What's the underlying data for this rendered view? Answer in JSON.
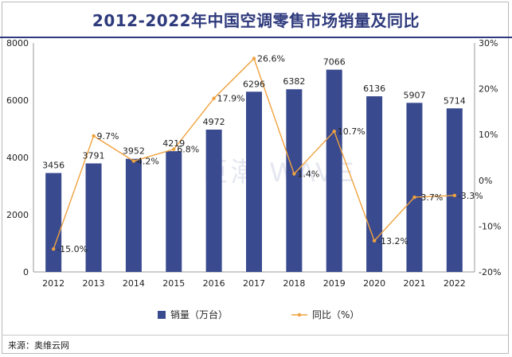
{
  "title": "2012-2022年中国空调零售市场销量及同比",
  "watermark": "巨潮 WAVE",
  "source": "来源：奥维云网",
  "chart_data": {
    "type": "bar+line",
    "categories": [
      "2012",
      "2013",
      "2014",
      "2015",
      "2016",
      "2017",
      "2018",
      "2019",
      "2020",
      "2021",
      "2022"
    ],
    "series": [
      {
        "name": "销量（万台）",
        "type": "bar",
        "axis": "left",
        "color": "#3a4a8f",
        "values": [
          3456,
          3791,
          3952,
          4219,
          4972,
          6296,
          6382,
          7066,
          6136,
          5907,
          5714
        ],
        "labels": [
          "3456",
          "3791",
          "3952",
          "4219",
          "4972",
          "6296",
          "6382",
          "7066",
          "6136",
          "5907",
          "5714"
        ]
      },
      {
        "name": "同比（%）",
        "type": "line",
        "axis": "right",
        "color": "#f0a23e",
        "values": [
          -15.0,
          9.7,
          4.2,
          6.8,
          17.9,
          26.6,
          1.4,
          10.7,
          -13.2,
          -3.7,
          -3.3
        ],
        "labels": [
          "-15.0%",
          "9.7%",
          "4.2%",
          "6.8%",
          "17.9%",
          "26.6%",
          "1.4%",
          "10.7%",
          "-13.2%",
          "-3.7%",
          "-3.3%"
        ]
      }
    ],
    "y_left": {
      "min": 0,
      "max": 8000,
      "ticks": [
        "0",
        "2000",
        "4000",
        "6000",
        "8000"
      ]
    },
    "y_right": {
      "min": -20,
      "max": 30,
      "ticks": [
        "-20%",
        "-10%",
        "0%",
        "10%",
        "20%",
        "30%"
      ]
    },
    "legend": "bottom-center"
  }
}
